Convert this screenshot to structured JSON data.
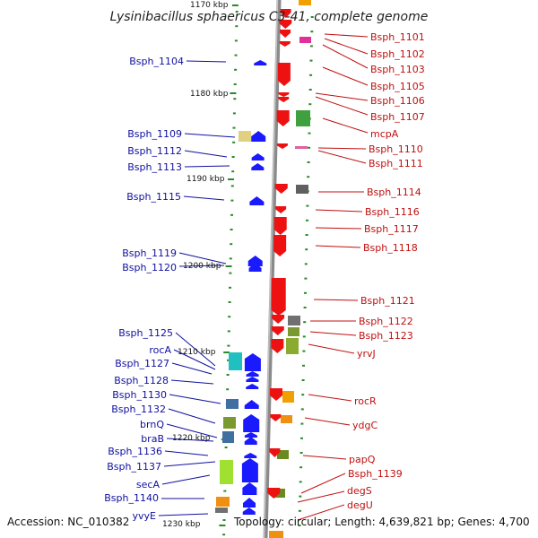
{
  "title": "Lysinibacillus sphaericus C3-41, complete genome",
  "accession": "Accession: NC_010382",
  "topology": "Topology: circular; Length: 4,639,821 bp; Genes: 4,700",
  "kbp_labels": [
    "1170 kbp",
    "1180 kbp",
    "1190 kbp",
    "1200 kbp",
    "1210 kbp",
    "1220 kbp",
    "1230 kbp"
  ],
  "left_labels": [
    "Bsph_1104",
    "Bsph_1109",
    "Bsph_1112",
    "Bsph_1113",
    "Bsph_1115",
    "Bsph_1119",
    "Bsph_1120",
    "Bsph_1125",
    "rocA",
    "Bsph_1127",
    "Bsph_1128",
    "Bsph_1130",
    "Bsph_1132",
    "brnQ",
    "braB",
    "Bsph_1136",
    "Bsph_1137",
    "secA",
    "Bsph_1140",
    "yvyE"
  ],
  "right_labels": [
    "Bsph_1101",
    "Bsph_1102",
    "Bsph_1103",
    "Bsph_1105",
    "Bsph_1106",
    "Bsph_1107",
    "mcpA",
    "Bsph_1110",
    "Bsph_1111",
    "Bsph_1114",
    "Bsph_1116",
    "Bsph_1117",
    "Bsph_1118",
    "Bsph_1121",
    "Bsph_1122",
    "Bsph_1123",
    "yrvJ",
    "rocR",
    "ydgC",
    "papQ",
    "Bsph_1139",
    "degS",
    "degU"
  ],
  "colors": {
    "forward_strand": "#1a1aff",
    "reverse_strand": "#ee1111",
    "backbone": "#888888",
    "tick": "#2a8a2a",
    "left_label": "#1010a0",
    "right_label": "#c01010"
  }
}
